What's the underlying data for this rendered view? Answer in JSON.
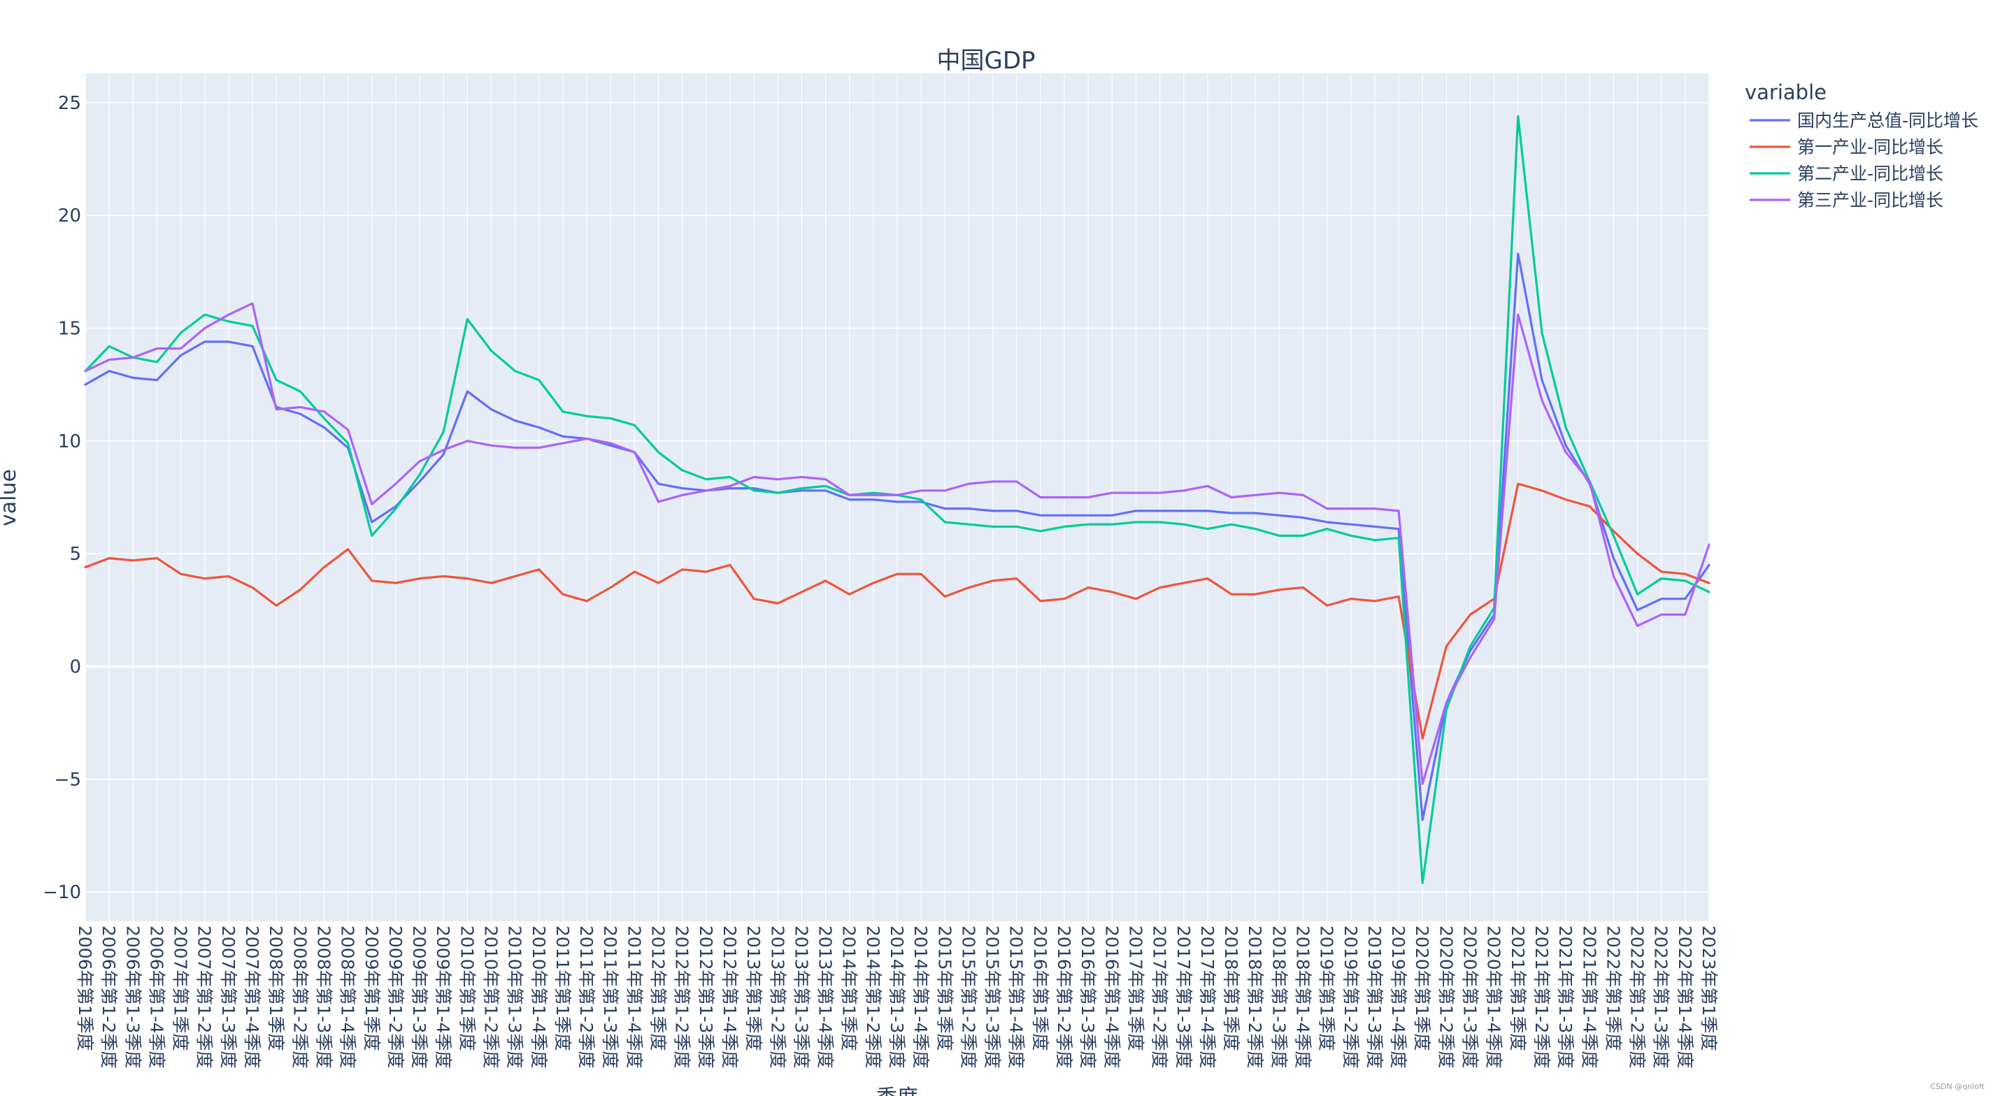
{
  "chart_data": {
    "type": "line",
    "title": "中国GDP",
    "xlabel": "季度",
    "ylabel": "value",
    "ylim": [
      -11.3,
      26.3
    ],
    "yticks": [
      -10,
      -5,
      0,
      5,
      10,
      15,
      20,
      25
    ],
    "ytick_labels": [
      "−10",
      "−5",
      "0",
      "5",
      "10",
      "15",
      "20",
      "25"
    ],
    "legend_title": "variable",
    "legend_position": "top-right, outside plot",
    "grid": true,
    "categories": [
      "2006年第1季度",
      "2006年第1-2季度",
      "2006年第1-3季度",
      "2006年第1-4季度",
      "2007年第1季度",
      "2007年第1-2季度",
      "2007年第1-3季度",
      "2007年第1-4季度",
      "2008年第1季度",
      "2008年第1-2季度",
      "2008年第1-3季度",
      "2008年第1-4季度",
      "2009年第1季度",
      "2009年第1-2季度",
      "2009年第1-3季度",
      "2009年第1-4季度",
      "2010年第1季度",
      "2010年第1-2季度",
      "2010年第1-3季度",
      "2010年第1-4季度",
      "2011年第1季度",
      "2011年第1-2季度",
      "2011年第1-3季度",
      "2011年第1-4季度",
      "2012年第1季度",
      "2012年第1-2季度",
      "2012年第1-3季度",
      "2012年第1-4季度",
      "2013年第1季度",
      "2013年第1-2季度",
      "2013年第1-3季度",
      "2013年第1-4季度",
      "2014年第1季度",
      "2014年第1-2季度",
      "2014年第1-3季度",
      "2014年第1-4季度",
      "2015年第1季度",
      "2015年第1-2季度",
      "2015年第1-3季度",
      "2015年第1-4季度",
      "2016年第1季度",
      "2016年第1-2季度",
      "2016年第1-3季度",
      "2016年第1-4季度",
      "2017年第1季度",
      "2017年第1-2季度",
      "2017年第1-3季度",
      "2017年第1-4季度",
      "2018年第1季度",
      "2018年第1-2季度",
      "2018年第1-3季度",
      "2018年第1-4季度",
      "2019年第1季度",
      "2019年第1-2季度",
      "2019年第1-3季度",
      "2019年第1-4季度",
      "2020年第1季度",
      "2020年第1-2季度",
      "2020年第1-3季度",
      "2020年第1-4季度",
      "2021年第1季度",
      "2021年第1-2季度",
      "2021年第1-3季度",
      "2021年第1-4季度",
      "2022年第1季度",
      "2022年第1-2季度",
      "2022年第1-3季度",
      "2022年第1-4季度",
      "2023年第1季度"
    ],
    "series": [
      {
        "name": "国内生产总值-同比增长",
        "color": "#636efa",
        "values": [
          12.5,
          13.1,
          12.8,
          12.7,
          13.8,
          14.4,
          14.4,
          14.2,
          11.5,
          11.2,
          10.6,
          9.7,
          6.4,
          7.1,
          8.2,
          9.4,
          12.2,
          11.4,
          10.9,
          10.6,
          10.2,
          10.1,
          9.8,
          9.5,
          8.1,
          7.9,
          7.8,
          7.9,
          7.9,
          7.7,
          7.8,
          7.8,
          7.4,
          7.4,
          7.3,
          7.3,
          7.0,
          7.0,
          6.9,
          6.9,
          6.7,
          6.7,
          6.7,
          6.7,
          6.9,
          6.9,
          6.9,
          6.9,
          6.8,
          6.8,
          6.7,
          6.6,
          6.4,
          6.3,
          6.2,
          6.1,
          -6.8,
          -1.6,
          0.7,
          2.3,
          18.3,
          12.7,
          9.8,
          8.1,
          4.8,
          2.5,
          3.0,
          3.0,
          4.5
        ]
      },
      {
        "name": "第一产业-同比增长",
        "color": "#ef553b",
        "values": [
          4.4,
          4.8,
          4.7,
          4.8,
          4.1,
          3.9,
          4.0,
          3.5,
          2.7,
          3.4,
          4.4,
          5.2,
          3.8,
          3.7,
          3.9,
          4.0,
          3.9,
          3.7,
          4.0,
          4.3,
          3.2,
          2.9,
          3.5,
          4.2,
          3.7,
          4.3,
          4.2,
          4.5,
          3.0,
          2.8,
          3.3,
          3.8,
          3.2,
          3.7,
          4.1,
          4.1,
          3.1,
          3.5,
          3.8,
          3.9,
          2.9,
          3.0,
          3.5,
          3.3,
          3.0,
          3.5,
          3.7,
          3.9,
          3.2,
          3.2,
          3.4,
          3.5,
          2.7,
          3.0,
          2.9,
          3.1,
          -3.2,
          0.9,
          2.3,
          3.0,
          8.1,
          7.8,
          7.4,
          7.1,
          6.0,
          5.0,
          4.2,
          4.1,
          3.7
        ]
      },
      {
        "name": "第二产业-同比增长",
        "color": "#00cc96",
        "values": [
          13.1,
          14.2,
          13.7,
          13.5,
          14.8,
          15.6,
          15.3,
          15.1,
          12.7,
          12.2,
          11.0,
          9.9,
          5.8,
          7.0,
          8.5,
          10.4,
          15.4,
          14.0,
          13.1,
          12.7,
          11.3,
          11.1,
          11.0,
          10.7,
          9.5,
          8.7,
          8.3,
          8.4,
          7.8,
          7.7,
          7.9,
          8.0,
          7.6,
          7.7,
          7.6,
          7.4,
          6.4,
          6.3,
          6.2,
          6.2,
          6.0,
          6.2,
          6.3,
          6.3,
          6.4,
          6.4,
          6.3,
          6.1,
          6.3,
          6.1,
          5.8,
          5.8,
          6.1,
          5.8,
          5.6,
          5.7,
          -9.6,
          -1.9,
          0.9,
          2.6,
          24.4,
          14.8,
          10.6,
          8.2,
          5.8,
          3.2,
          3.9,
          3.8,
          3.3
        ]
      },
      {
        "name": "第三产业-同比增长",
        "color": "#ab63fa",
        "values": [
          13.1,
          13.6,
          13.7,
          14.1,
          14.1,
          15.0,
          15.6,
          16.1,
          11.4,
          11.5,
          11.3,
          10.5,
          7.2,
          8.1,
          9.1,
          9.6,
          10.0,
          9.8,
          9.7,
          9.7,
          9.9,
          10.1,
          9.9,
          9.5,
          7.3,
          7.6,
          7.8,
          8.0,
          8.4,
          8.3,
          8.4,
          8.3,
          7.6,
          7.6,
          7.6,
          7.8,
          7.8,
          8.1,
          8.2,
          8.2,
          7.5,
          7.5,
          7.5,
          7.7,
          7.7,
          7.7,
          7.8,
          8.0,
          7.5,
          7.6,
          7.7,
          7.6,
          7.0,
          7.0,
          7.0,
          6.9,
          -5.2,
          -1.6,
          0.4,
          2.1,
          15.6,
          11.8,
          9.5,
          8.2,
          4.0,
          1.8,
          2.3,
          2.3,
          5.4
        ]
      }
    ]
  },
  "watermark": "CSDN @qnloft"
}
